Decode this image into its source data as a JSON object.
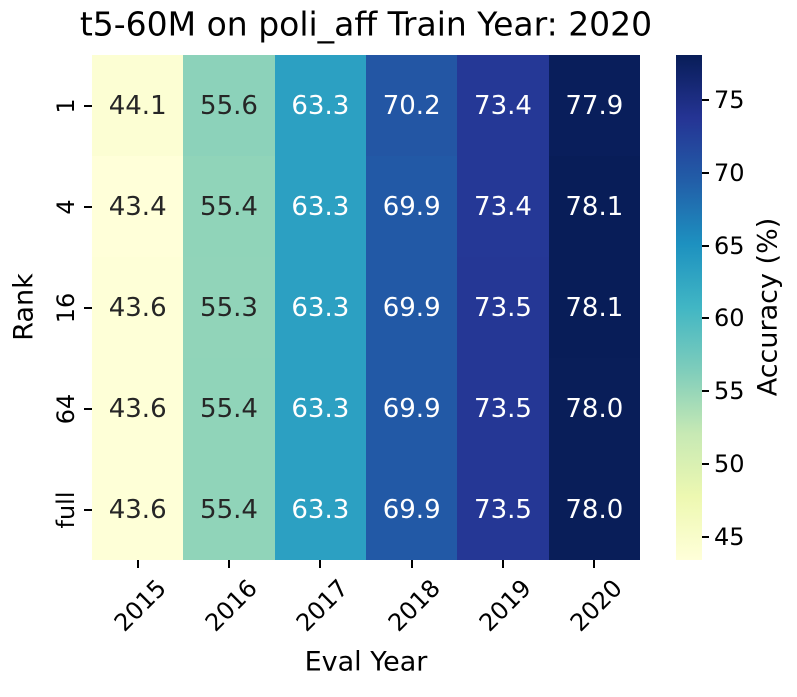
{
  "chart_data": {
    "type": "heatmap",
    "title": "t5-60M on poli_aff Train Year: 2020",
    "xlabel": "Eval Year",
    "ylabel": "Rank",
    "x_categories": [
      "2015",
      "2016",
      "2017",
      "2018",
      "2019",
      "2020"
    ],
    "y_categories": [
      "1",
      "4",
      "16",
      "64",
      "full"
    ],
    "values": [
      [
        44.1,
        55.6,
        63.3,
        70.2,
        73.4,
        77.9
      ],
      [
        43.4,
        55.4,
        63.3,
        69.9,
        73.4,
        78.1
      ],
      [
        43.6,
        55.3,
        63.3,
        69.9,
        73.5,
        78.1
      ],
      [
        43.6,
        55.4,
        63.3,
        69.9,
        73.5,
        78.0
      ],
      [
        43.6,
        55.4,
        63.3,
        69.9,
        73.5,
        78.0
      ]
    ],
    "colorbar": {
      "label": "Accuracy (%)",
      "ticks": [
        45,
        50,
        55,
        60,
        65,
        70,
        75
      ],
      "vmin": 43.4,
      "vmax": 78.1,
      "position": "right"
    },
    "colormap": {
      "name": "YlGnBu",
      "stops": [
        "#ffffd9",
        "#edf8b1",
        "#c7e9b4",
        "#7fcdbb",
        "#41b6c4",
        "#1d91c0",
        "#225ea8",
        "#253494",
        "#081d58"
      ]
    },
    "annotation_colors": {
      "on_light": "#262626",
      "on_dark": "#ffffff"
    },
    "grid": false,
    "x_tick_rotation": 45,
    "y_tick_rotation": 90
  }
}
